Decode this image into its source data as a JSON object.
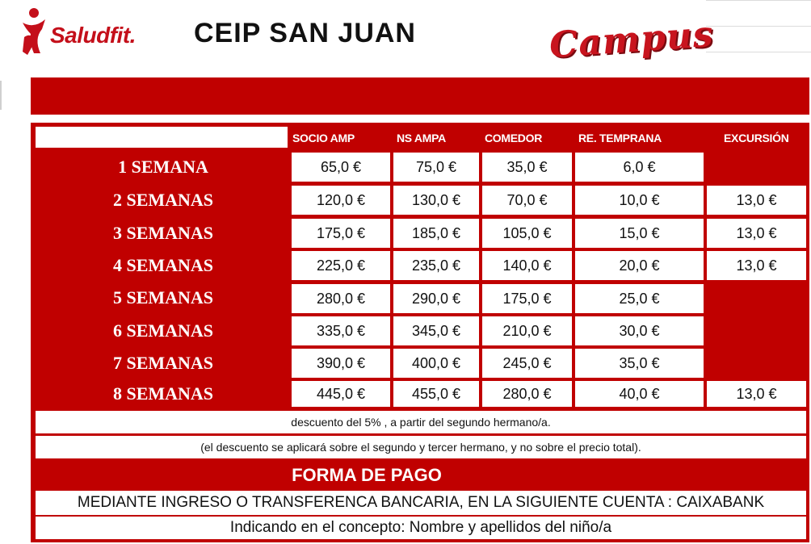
{
  "header": {
    "logo_text": "Saludfit.",
    "title": "CEIP SAN JUAN",
    "campus": "Campus"
  },
  "table": {
    "columns": [
      "SOCIO AMP",
      "NS AMPA",
      "COMEDOR",
      "RE. TEMPRANA",
      "EXCURSIÓN"
    ],
    "rows": [
      {
        "label": "1 SEMANA",
        "values": [
          "65,0 €",
          "75,0 €",
          "35,0 €",
          "6,0 €",
          ""
        ]
      },
      {
        "label": "2 SEMANAS",
        "values": [
          "120,0 €",
          "130,0 €",
          "70,0 €",
          "10,0 €",
          "13,0 €"
        ]
      },
      {
        "label": "3 SEMANAS",
        "values": [
          "175,0 €",
          "185,0 €",
          "105,0 €",
          "15,0 €",
          "13,0 €"
        ]
      },
      {
        "label": "4 SEMANAS",
        "values": [
          "225,0 €",
          "235,0 €",
          "140,0 €",
          "20,0 €",
          "13,0 €"
        ]
      },
      {
        "label": "5 SEMANAS",
        "values": [
          "280,0 €",
          "290,0 €",
          "175,0 €",
          "25,0 €",
          ""
        ]
      },
      {
        "label": "6 SEMANAS",
        "values": [
          "335,0 €",
          "345,0 €",
          "210,0 €",
          "30,0 €",
          ""
        ]
      },
      {
        "label": "7 SEMANAS",
        "values": [
          "390,0 €",
          "400,0 €",
          "245,0 €",
          "35,0 €",
          ""
        ]
      },
      {
        "label": "8 SEMANAS",
        "values": [
          "445,0 €",
          "455,0 €",
          "280,0 €",
          "40,0 €",
          "13,0 €"
        ]
      }
    ]
  },
  "notes": {
    "discount": "descuento del  5% , a partir del segundo hermano/a.",
    "discount_detail": "(el descuento se aplicará sobre el segundo y tercer hermano, y no sobre el precio total)."
  },
  "payment": {
    "title": "FORMA DE PAGO",
    "method": "MEDIANTE INGRESO O TRANSFERENCA BANCARIA, EN LA SIGUIENTE CUENTA  : CAIXABANK",
    "concept": "Indicando en el concepto: Nombre y apellidos del niño/a"
  },
  "colors": {
    "brand_red": "#c00000",
    "logo_red": "#c40f1a"
  }
}
